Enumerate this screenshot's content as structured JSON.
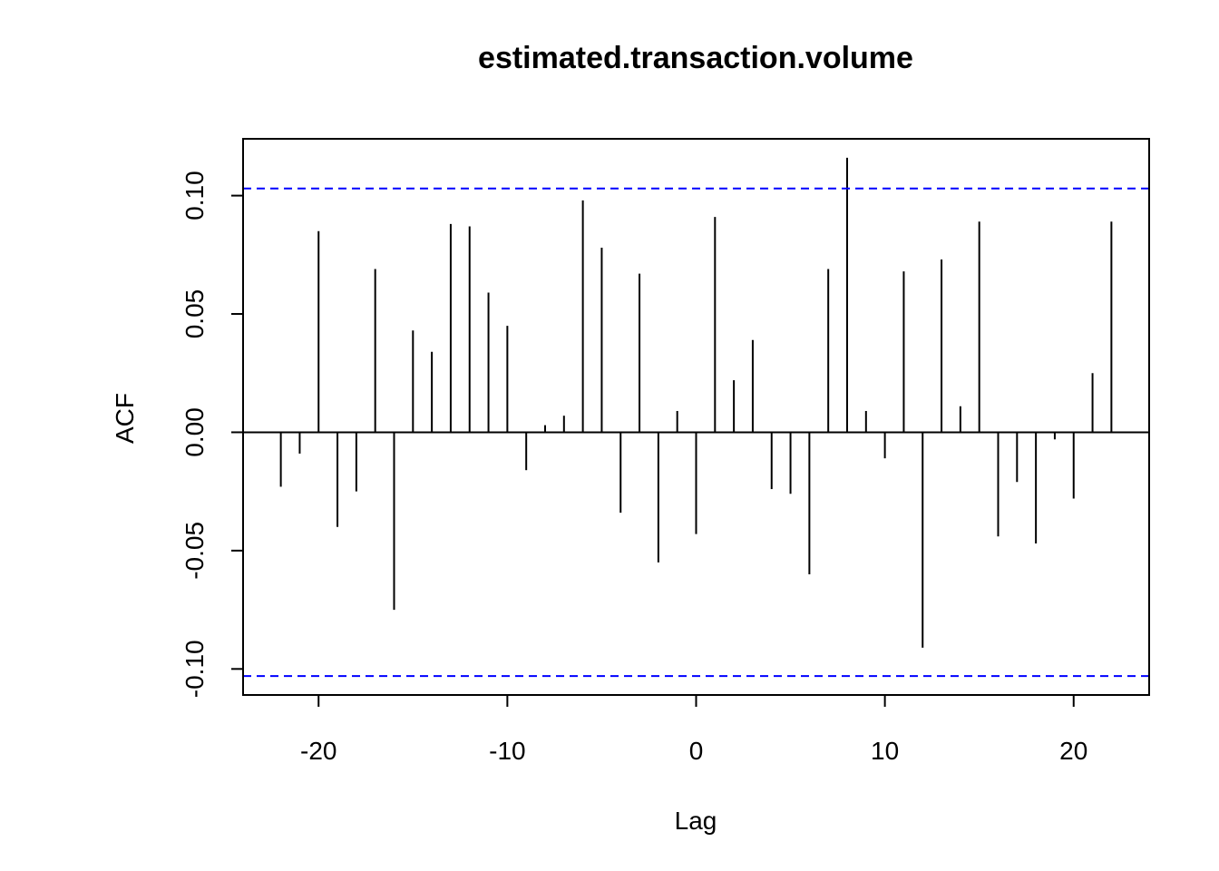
{
  "chart_data": {
    "type": "bar",
    "title": "estimated.transaction.volume",
    "xlabel": "Lag",
    "ylabel": "ACF",
    "xlim": [
      -24,
      24
    ],
    "ylim": [
      -0.111,
      0.124
    ],
    "x_ticks": [
      -20,
      -10,
      0,
      10,
      20
    ],
    "x_tick_labels": [
      "-20",
      "-10",
      "0",
      "10",
      "20"
    ],
    "y_ticks": [
      -0.1,
      -0.05,
      0.0,
      0.05,
      0.1
    ],
    "y_tick_labels": [
      "-0.10",
      "-0.05",
      "0.00",
      "0.05",
      "0.10"
    ],
    "confidence_bounds": [
      0.103,
      -0.103
    ],
    "confidence_color": "#0000ff",
    "bar_color": "#000000",
    "lags": [
      -22,
      -21,
      -20,
      -19,
      -18,
      -17,
      -16,
      -15,
      -14,
      -13,
      -12,
      -11,
      -10,
      -9,
      -8,
      -7,
      -6,
      -5,
      -4,
      -3,
      -2,
      -1,
      0,
      1,
      2,
      3,
      4,
      5,
      6,
      7,
      8,
      9,
      10,
      11,
      12,
      13,
      14,
      15,
      16,
      17,
      18,
      19,
      20,
      21,
      22
    ],
    "values": [
      -0.023,
      -0.009,
      0.085,
      -0.04,
      -0.025,
      0.069,
      -0.075,
      0.043,
      0.034,
      0.088,
      0.087,
      0.059,
      0.045,
      -0.016,
      0.003,
      0.007,
      0.098,
      0.078,
      -0.034,
      0.067,
      -0.055,
      0.009,
      -0.043,
      0.091,
      0.022,
      0.039,
      -0.024,
      -0.026,
      -0.06,
      0.069,
      0.116,
      0.009,
      -0.011,
      0.068,
      -0.091,
      0.073,
      0.011,
      0.089,
      -0.044,
      -0.021,
      -0.047,
      -0.003,
      -0.028,
      0.025,
      0.089
    ]
  }
}
